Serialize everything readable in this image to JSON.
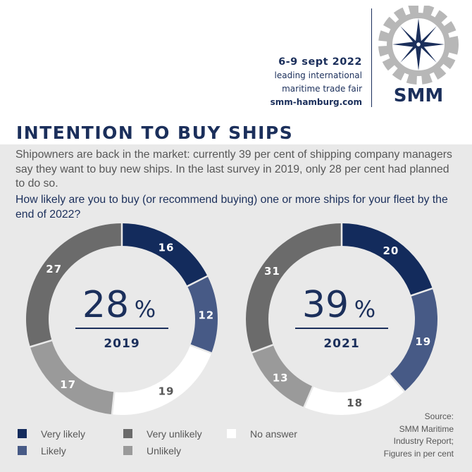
{
  "header": {
    "fair_date": "6-9 sept 2022",
    "fair_tagline_1": "leading international",
    "fair_tagline_2": "maritime trade fair",
    "fair_url": "smm-hamburg.com",
    "logo_text": "SMM"
  },
  "title": "INTENTION TO BUY SHIPS",
  "intro": "Shipowners are back in the market: currently 39 per cent of shipping company managers say they want to buy new ships. In the last survey in 2019, only 28 per cent had planned to do so.",
  "question": "How likely are you to buy (or recommend buying) one or more ships for your fleet by the end of 2022?",
  "chart_data": [
    {
      "type": "pie",
      "variant": "donut",
      "year": "2019",
      "center_value": "28",
      "center_unit": "%",
      "categories": [
        "Very likely",
        "Likely",
        "No answer",
        "Unlikely",
        "Very unlikely"
      ],
      "values": [
        16,
        12,
        19,
        17,
        27
      ],
      "colors": [
        "#132b5c",
        "#475a86",
        "#ffffff",
        "#9a9a9a",
        "#6b6b6b"
      ]
    },
    {
      "type": "pie",
      "variant": "donut",
      "year": "2021",
      "center_value": "39",
      "center_unit": "%",
      "categories": [
        "Very likely",
        "Likely",
        "No answer",
        "Unlikely",
        "Very unlikely"
      ],
      "values": [
        20,
        19,
        18,
        13,
        31
      ],
      "colors": [
        "#132b5c",
        "#475a86",
        "#ffffff",
        "#9a9a9a",
        "#6b6b6b"
      ]
    }
  ],
  "legend": [
    {
      "label": "Very likely",
      "color": "#132b5c"
    },
    {
      "label": "Likely",
      "color": "#475a86"
    },
    {
      "label": "Very unlikely",
      "color": "#6b6b6b"
    },
    {
      "label": "Unlikely",
      "color": "#9a9a9a"
    },
    {
      "label": "No answer",
      "color": "#ffffff"
    }
  ],
  "source": {
    "line1": "Source:",
    "line2": "SMM Maritime",
    "line3": "Industry Report;",
    "line4": "Figures in per cent"
  }
}
